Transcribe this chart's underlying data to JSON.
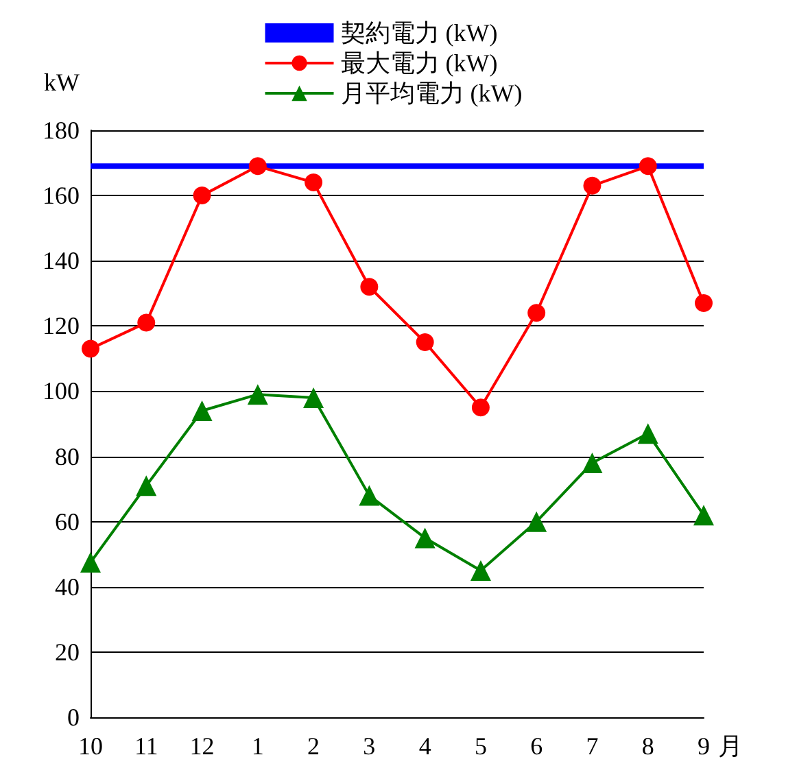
{
  "chart_data": {
    "type": "line",
    "ylabel": "kW",
    "xlabel": "月",
    "categories": [
      "10",
      "11",
      "12",
      "1",
      "2",
      "3",
      "4",
      "5",
      "6",
      "7",
      "8",
      "9"
    ],
    "series": [
      {
        "name": "契約電力 (kW)",
        "color": "#0000ff",
        "marker": "none",
        "values": [
          169,
          169,
          169,
          169,
          169,
          169,
          169,
          169,
          169,
          169,
          169,
          169
        ]
      },
      {
        "name": "最大電力 (kW)",
        "color": "#ff0000",
        "marker": "circle",
        "values": [
          113,
          121,
          160,
          169,
          164,
          132,
          115,
          95,
          124,
          163,
          169,
          127
        ]
      },
      {
        "name": "月平均電力 (kW)",
        "color": "#008000",
        "marker": "triangle",
        "values": [
          47.5,
          71,
          94,
          99,
          98,
          68,
          55,
          45,
          60,
          78,
          87,
          62
        ]
      }
    ],
    "ylim": [
      0,
      180
    ],
    "yticks": [
      0,
      20,
      40,
      60,
      80,
      100,
      120,
      140,
      160,
      180
    ],
    "grid": "y",
    "legend": "top"
  }
}
